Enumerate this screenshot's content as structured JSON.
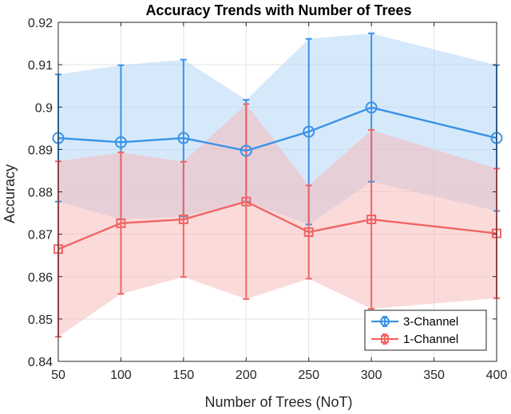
{
  "chart_data": {
    "type": "line",
    "title": "Accuracy Trends with Number of Trees",
    "xlabel": "Number of Trees (NoT)",
    "ylabel": "Accuracy",
    "x": [
      50,
      100,
      150,
      200,
      250,
      300,
      400
    ],
    "xlim": [
      50,
      400
    ],
    "ylim": [
      0.84,
      0.92
    ],
    "xticks": [
      50,
      100,
      150,
      200,
      250,
      300,
      350,
      400
    ],
    "xtick_labels": [
      "50",
      "100",
      "150",
      "200",
      "250",
      "300",
      "350",
      "400"
    ],
    "yticks": [
      0.84,
      0.85,
      0.86,
      0.87,
      0.88,
      0.89,
      0.9,
      0.91,
      0.92
    ],
    "ytick_labels": [
      "0.84",
      "0.85",
      "0.86",
      "0.87",
      "0.88",
      "0.89",
      "0.9",
      "0.91",
      "0.92"
    ],
    "grid": true,
    "legend_position": "bottom-right",
    "series": [
      {
        "name": "3-Channel",
        "color": "#3a93e6",
        "band_color": "#aed3f7",
        "marker": "circle",
        "values": [
          0.8927,
          0.8917,
          0.8927,
          0.8897,
          0.8942,
          0.8999,
          0.8927
        ],
        "errors": [
          0.015,
          0.0182,
          0.0185,
          0.012,
          0.0219,
          0.0175,
          0.0172
        ]
      },
      {
        "name": "1-Channel",
        "color": "#f06565",
        "band_color": "#f7b5b5",
        "marker": "square",
        "values": [
          0.8665,
          0.8726,
          0.8735,
          0.8777,
          0.8705,
          0.8735,
          0.8702
        ],
        "errors": [
          0.0207,
          0.0167,
          0.0136,
          0.023,
          0.011,
          0.0211,
          0.0153
        ]
      }
    ]
  }
}
